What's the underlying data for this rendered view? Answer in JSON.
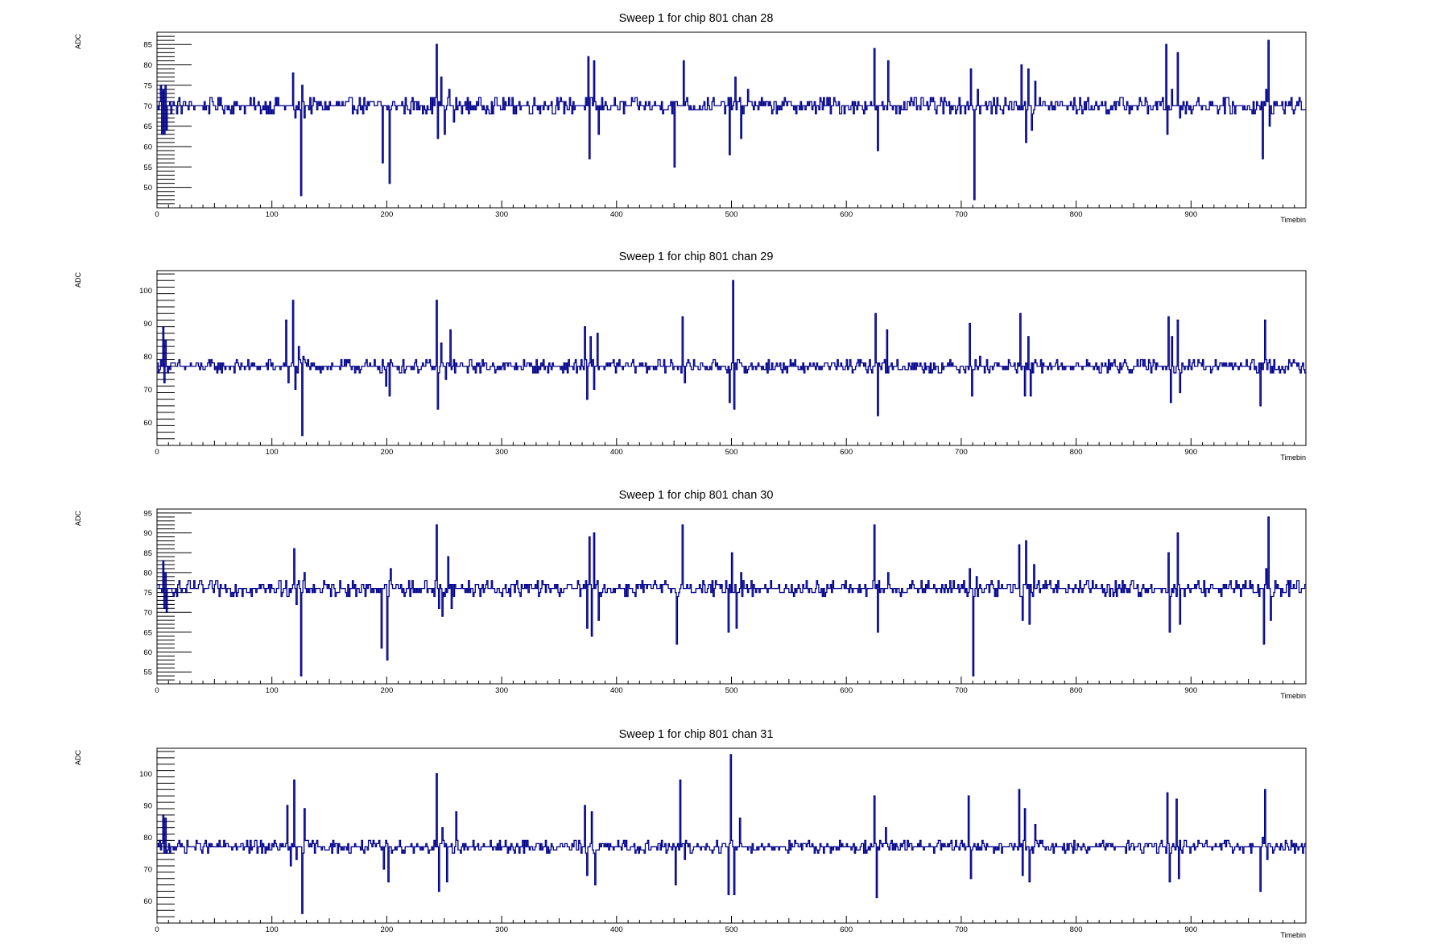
{
  "colors": {
    "trace": "#00008b",
    "frame": "#000000",
    "background": "#ffffff"
  },
  "chart_data": [
    {
      "type": "line",
      "title": "Sweep 1 for chip 801 chan 28",
      "xlabel": "Timebin",
      "ylabel": "ADC",
      "xlim": [
        0,
        1000
      ],
      "ylim": [
        45,
        88
      ],
      "xticks": [
        "0",
        "100",
        "200",
        "300",
        "400",
        "500",
        "600",
        "700",
        "800",
        "900"
      ],
      "yticks": [
        "50",
        "55",
        "60",
        "65",
        "70",
        "75",
        "80",
        "85"
      ],
      "baseline": 70,
      "noise": 1.2,
      "spikes": [
        [
          3,
          75
        ],
        [
          4,
          63
        ],
        [
          5,
          74
        ],
        [
          6,
          63
        ],
        [
          7,
          75
        ],
        [
          8,
          64
        ],
        [
          118,
          78
        ],
        [
          120,
          67
        ],
        [
          125,
          48
        ],
        [
          126,
          75
        ],
        [
          128,
          67
        ],
        [
          196,
          56
        ],
        [
          202,
          51
        ],
        [
          243,
          85
        ],
        [
          244,
          62
        ],
        [
          247,
          77
        ],
        [
          250,
          63
        ],
        [
          254,
          74
        ],
        [
          258,
          66
        ],
        [
          375,
          82
        ],
        [
          376,
          57
        ],
        [
          380,
          81
        ],
        [
          384,
          63
        ],
        [
          387,
          72
        ],
        [
          450,
          55
        ],
        [
          458,
          81
        ],
        [
          460,
          71
        ],
        [
          498,
          58
        ],
        [
          503,
          77
        ],
        [
          508,
          62
        ],
        [
          514,
          74
        ],
        [
          624,
          84
        ],
        [
          627,
          59
        ],
        [
          629,
          70
        ],
        [
          636,
          81
        ],
        [
          708,
          79
        ],
        [
          711,
          47
        ],
        [
          714,
          74
        ],
        [
          752,
          80
        ],
        [
          756,
          61
        ],
        [
          758,
          79
        ],
        [
          761,
          64
        ],
        [
          764,
          76
        ],
        [
          878,
          85
        ],
        [
          879,
          63
        ],
        [
          883,
          74
        ],
        [
          888,
          83
        ],
        [
          890,
          67
        ],
        [
          962,
          57
        ],
        [
          965,
          74
        ],
        [
          967,
          86
        ],
        [
          968,
          65
        ]
      ]
    },
    {
      "type": "line",
      "title": "Sweep 1 for chip 801 chan 29",
      "xlabel": "Timebin",
      "ylabel": "ADC",
      "xlim": [
        0,
        1000
      ],
      "ylim": [
        53,
        106
      ],
      "xticks": [
        "0",
        "100",
        "200",
        "300",
        "400",
        "500",
        "600",
        "700",
        "800",
        "900"
      ],
      "yticks": [
        "60",
        "70",
        "80",
        "90",
        "100"
      ],
      "baseline": 77,
      "noise": 1.5,
      "spikes": [
        [
          5,
          89
        ],
        [
          6,
          72
        ],
        [
          7,
          85
        ],
        [
          112,
          91
        ],
        [
          114,
          72
        ],
        [
          118,
          97
        ],
        [
          120,
          70
        ],
        [
          123,
          83
        ],
        [
          126,
          56
        ],
        [
          127,
          80
        ],
        [
          199,
          71
        ],
        [
          202,
          68
        ],
        [
          243,
          97
        ],
        [
          244,
          64
        ],
        [
          247,
          84
        ],
        [
          251,
          73
        ],
        [
          255,
          88
        ],
        [
          372,
          89
        ],
        [
          374,
          67
        ],
        [
          377,
          86
        ],
        [
          380,
          70
        ],
        [
          383,
          87
        ],
        [
          457,
          92
        ],
        [
          459,
          72
        ],
        [
          498,
          66
        ],
        [
          501,
          103
        ],
        [
          502,
          64
        ],
        [
          508,
          78
        ],
        [
          625,
          93
        ],
        [
          627,
          62
        ],
        [
          635,
          88
        ],
        [
          707,
          90
        ],
        [
          709,
          68
        ],
        [
          716,
          80
        ],
        [
          751,
          93
        ],
        [
          755,
          68
        ],
        [
          758,
          86
        ],
        [
          760,
          68
        ],
        [
          880,
          92
        ],
        [
          882,
          66
        ],
        [
          883,
          86
        ],
        [
          888,
          91
        ],
        [
          890,
          69
        ],
        [
          960,
          65
        ],
        [
          964,
          91
        ]
      ]
    },
    {
      "type": "line",
      "title": "Sweep 1 for chip 801 chan 30",
      "xlabel": "Timebin",
      "ylabel": "ADC",
      "xlim": [
        0,
        1000
      ],
      "ylim": [
        52,
        96
      ],
      "xticks": [
        "0",
        "100",
        "200",
        "300",
        "400",
        "500",
        "600",
        "700",
        "800",
        "900"
      ],
      "yticks": [
        "55",
        "60",
        "65",
        "70",
        "75",
        "80",
        "85",
        "90",
        "95"
      ],
      "baseline": 76,
      "noise": 1.2,
      "spikes": [
        [
          5,
          83
        ],
        [
          6,
          71
        ],
        [
          7,
          80
        ],
        [
          8,
          70
        ],
        [
          119,
          86
        ],
        [
          121,
          72
        ],
        [
          125,
          54
        ],
        [
          128,
          80
        ],
        [
          195,
          61
        ],
        [
          200,
          58
        ],
        [
          203,
          81
        ],
        [
          243,
          92
        ],
        [
          245,
          71
        ],
        [
          248,
          69
        ],
        [
          253,
          84
        ],
        [
          256,
          71
        ],
        [
          374,
          66
        ],
        [
          376,
          89
        ],
        [
          378,
          64
        ],
        [
          380,
          90
        ],
        [
          384,
          68
        ],
        [
          452,
          62
        ],
        [
          457,
          92
        ],
        [
          497,
          65
        ],
        [
          500,
          85
        ],
        [
          504,
          66
        ],
        [
          508,
          80
        ],
        [
          624,
          92
        ],
        [
          627,
          65
        ],
        [
          636,
          80
        ],
        [
          707,
          81
        ],
        [
          710,
          54
        ],
        [
          713,
          79
        ],
        [
          750,
          87
        ],
        [
          753,
          68
        ],
        [
          756,
          88
        ],
        [
          759,
          67
        ],
        [
          763,
          82
        ],
        [
          880,
          85
        ],
        [
          881,
          65
        ],
        [
          888,
          90
        ],
        [
          890,
          67
        ],
        [
          963,
          62
        ],
        [
          965,
          81
        ],
        [
          967,
          94
        ],
        [
          969,
          68
        ]
      ]
    },
    {
      "type": "line",
      "title": "Sweep 1 for chip 801 chan 31",
      "xlabel": "Timebin",
      "ylabel": "ADC",
      "xlim": [
        0,
        1000
      ],
      "ylim": [
        53,
        108
      ],
      "xticks": [
        "0",
        "100",
        "200",
        "300",
        "400",
        "500",
        "600",
        "700",
        "800",
        "900"
      ],
      "yticks": [
        "60",
        "70",
        "80",
        "90",
        "100"
      ],
      "baseline": 77,
      "noise": 1.3,
      "spikes": [
        [
          5,
          87
        ],
        [
          6,
          75
        ],
        [
          7,
          86
        ],
        [
          8,
          75
        ],
        [
          113,
          90
        ],
        [
          116,
          71
        ],
        [
          119,
          98
        ],
        [
          121,
          73
        ],
        [
          126,
          56
        ],
        [
          128,
          89
        ],
        [
          197,
          70
        ],
        [
          201,
          66
        ],
        [
          243,
          100
        ],
        [
          245,
          63
        ],
        [
          248,
          83
        ],
        [
          252,
          66
        ],
        [
          260,
          88
        ],
        [
          372,
          90
        ],
        [
          374,
          68
        ],
        [
          378,
          88
        ],
        [
          381,
          65
        ],
        [
          451,
          65
        ],
        [
          455,
          98
        ],
        [
          459,
          73
        ],
        [
          497,
          62
        ],
        [
          499,
          106
        ],
        [
          502,
          62
        ],
        [
          507,
          86
        ],
        [
          624,
          93
        ],
        [
          626,
          61
        ],
        [
          634,
          83
        ],
        [
          706,
          93
        ],
        [
          708,
          67
        ],
        [
          750,
          95
        ],
        [
          753,
          68
        ],
        [
          755,
          89
        ],
        [
          759,
          66
        ],
        [
          764,
          84
        ],
        [
          879,
          94
        ],
        [
          881,
          66
        ],
        [
          887,
          92
        ],
        [
          889,
          67
        ],
        [
          960,
          63
        ],
        [
          962,
          80
        ],
        [
          964,
          95
        ],
        [
          966,
          73
        ]
      ]
    }
  ]
}
